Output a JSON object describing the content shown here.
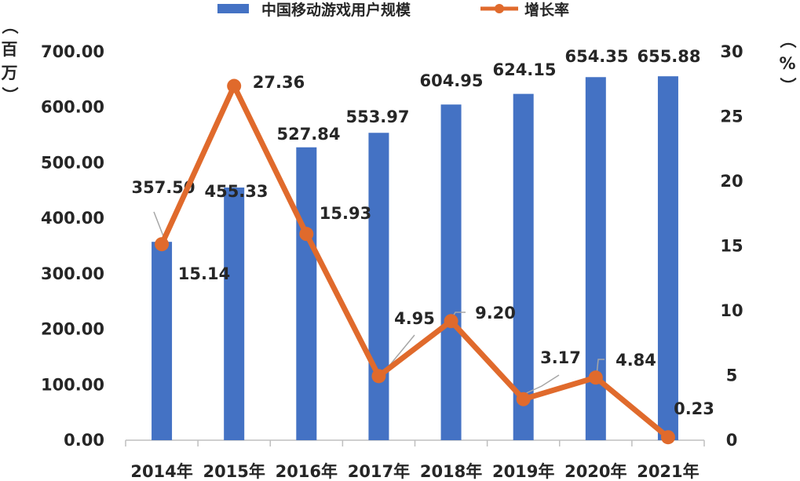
{
  "chart_data": {
    "type": "bar+line",
    "categories": [
      "2014年",
      "2015年",
      "2016年",
      "2017年",
      "2018年",
      "2019年",
      "2020年",
      "2021年"
    ],
    "series": [
      {
        "name": "中国移动游戏用户规模",
        "type": "bar",
        "axis": "left",
        "values": [
          357.5,
          455.33,
          527.84,
          553.97,
          604.95,
          624.15,
          654.35,
          655.88
        ],
        "labels": [
          "357.50",
          "455.33",
          "527.84",
          "553.97",
          "604.95",
          "624.15",
          "654.35",
          "655.88"
        ],
        "color": "#4472C4"
      },
      {
        "name": "增长率",
        "type": "line",
        "axis": "right",
        "values": [
          15.14,
          27.36,
          15.93,
          4.95,
          9.2,
          3.17,
          4.84,
          0.23
        ],
        "labels": [
          "15.14",
          "27.36",
          "15.93",
          "4.95",
          "9.20",
          "3.17",
          "4.84",
          "0.23"
        ],
        "color": "#E06A2C"
      }
    ],
    "y_left": {
      "label_chars": [
        "（",
        "百",
        "万",
        "）"
      ],
      "ylim": [
        0,
        700
      ],
      "ticks": [
        "0.00",
        "100.00",
        "200.00",
        "300.00",
        "400.00",
        "500.00",
        "600.00",
        "700.00"
      ]
    },
    "y_right": {
      "label_chars": [
        "（",
        "%",
        "）"
      ],
      "ylim": [
        0,
        30
      ],
      "ticks": [
        "0",
        "5",
        "10",
        "15",
        "20",
        "25",
        "30"
      ]
    },
    "legend_position": "top-center",
    "grid": false
  }
}
